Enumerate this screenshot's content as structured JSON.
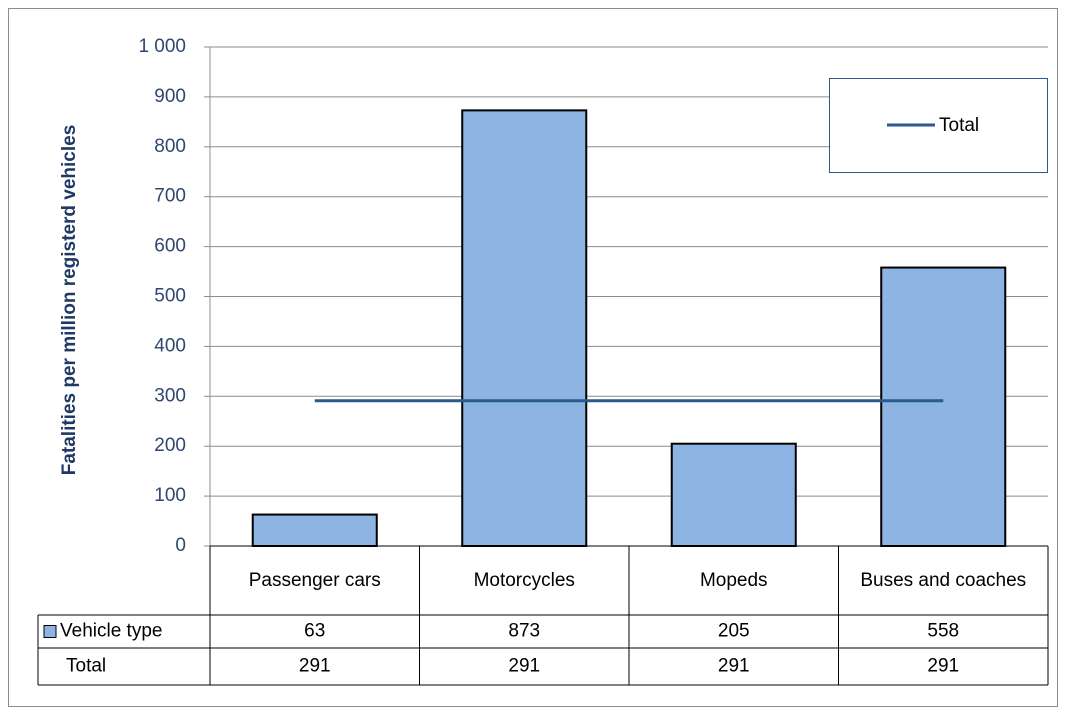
{
  "chart_data": {
    "type": "bar",
    "y_label": "Fatalities per million registerd vehicles",
    "categories": [
      "Passenger cars",
      "Motorcycles",
      "Mopeds",
      "Buses and coaches"
    ],
    "series": [
      {
        "name": "Vehicle type",
        "type": "bar",
        "color": "#8db4e2",
        "values": [
          63,
          873,
          205,
          558
        ]
      },
      {
        "name": "Total",
        "type": "line",
        "color": "#2b5a8e",
        "values": [
          291,
          291,
          291,
          291
        ]
      }
    ],
    "ylim": [
      0,
      1000
    ],
    "yticks": [
      0,
      100,
      200,
      300,
      400,
      500,
      600,
      700,
      800,
      900,
      {
        "value": 1000,
        "label": "1 000"
      }
    ],
    "grid": true,
    "legend": "top-right"
  }
}
